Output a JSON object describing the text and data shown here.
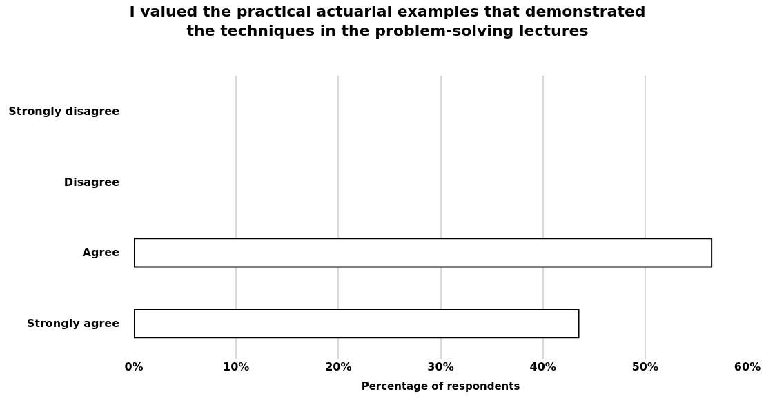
{
  "chart_data": {
    "type": "bar",
    "orientation": "horizontal",
    "title": "I valued the practical actuarial examples that demonstrated the techniques in the problem-solving lectures",
    "xlabel": "Percentage of respondents",
    "categories": [
      "Strongly disagree",
      "Disagree",
      "Agree",
      "Strongly agree"
    ],
    "values": [
      0,
      0,
      56.5,
      43.5
    ],
    "colors": [
      "#ffffff",
      "#ffffff",
      "#ffffff",
      "#ffffff"
    ],
    "xlim": [
      0,
      60
    ],
    "xticks": [
      {
        "value": 0,
        "label": "0%"
      },
      {
        "value": 10,
        "label": "10%"
      },
      {
        "value": 20,
        "label": "20%"
      },
      {
        "value": 30,
        "label": "30%"
      },
      {
        "value": 40,
        "label": "40%"
      },
      {
        "value": 50,
        "label": "50%"
      },
      {
        "value": 60,
        "label": "60%"
      }
    ],
    "grid": "x"
  }
}
